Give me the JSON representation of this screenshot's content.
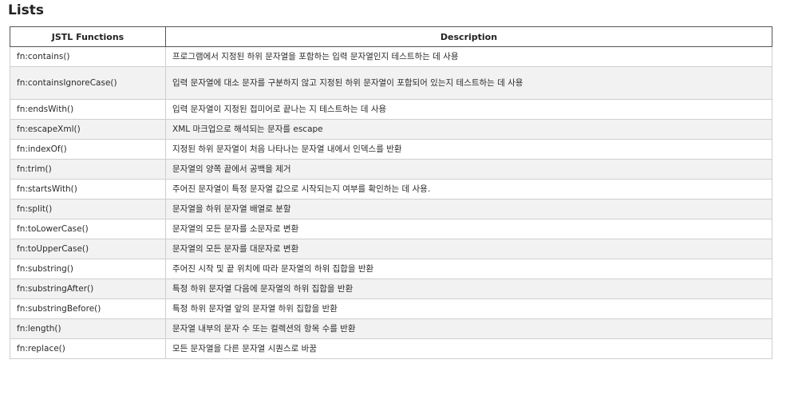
{
  "page": {
    "title": "Lists"
  },
  "table": {
    "headers": [
      "JSTL Functions",
      "Description"
    ],
    "rows": [
      {
        "fn": "fn:contains()",
        "desc": "프로그램에서 지정된 하위 문자열을 포함하는 입력 문자열인지 테스트하는 데 사용"
      },
      {
        "fn": "fn:containsIgnoreCase()",
        "desc": "입력 문자열에 대소 문자를 구분하지 않고 지정된 하위 문자열이 포함되어 있는지 테스트하는 데 사용"
      },
      {
        "fn": "fn:endsWith()",
        "desc": "입력 문자열이 지정된 접미어로 끝나는 지 테스트하는 데 사용"
      },
      {
        "fn": "fn:escapeXml()",
        "desc": "XML 마크업으로 해석되는 문자를 escape"
      },
      {
        "fn": "fn:indexOf()",
        "desc": "지정된 하위 문자열이 처음 나타나는 문자열 내에서 인덱스를 반환"
      },
      {
        "fn": "fn:trim()",
        "desc": "문자열의 양쪽 끝에서 공백을 제거"
      },
      {
        "fn": "fn:startsWith()",
        "desc": "주어진 문자열이 특정 문자열 값으로 시작되는지 여부를 확인하는 데 사용."
      },
      {
        "fn": "fn:split()",
        "desc": "문자열을 하위 문자열 배열로 분할"
      },
      {
        "fn": "fn:toLowerCase()",
        "desc": "문자열의 모든 문자를 소문자로 변환"
      },
      {
        "fn": "fn:toUpperCase()",
        "desc": "문자열의 모든 문자를 대문자로 변환"
      },
      {
        "fn": "fn:substring()",
        "desc": "주어진 시작 및 끝 위치에 따라 문자열의 하위 집합을 반환"
      },
      {
        "fn": "fn:substringAfter()",
        "desc": "특정 하위 문자열 다음에 문자열의 하위 집합을 반환"
      },
      {
        "fn": "fn:substringBefore()",
        "desc": "특정 하위 문자열 앞의 문자열 하위 집합을 반환"
      },
      {
        "fn": "fn:length()",
        "desc": "문자열 내부의 문자 수 또는 컬렉션의 항목 수를 반환"
      },
      {
        "fn": "fn:replace()",
        "desc": "모든 문자열을 다른 문자열 시퀀스로 바꿈"
      }
    ]
  }
}
